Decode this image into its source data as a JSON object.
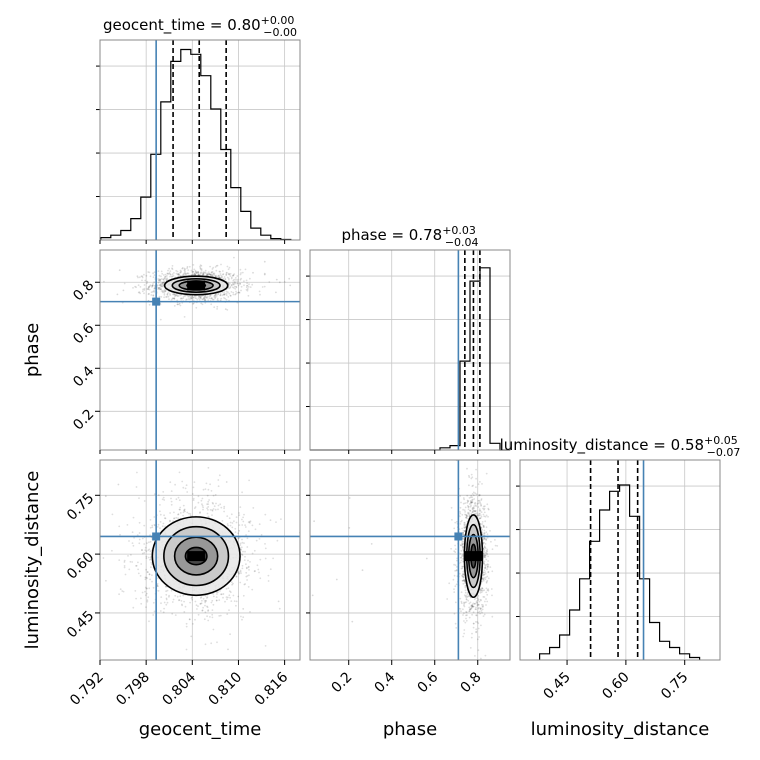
{
  "chart_data": {
    "type": "corner",
    "parameters": [
      "geocent_time",
      "phase",
      "luminosity_distance"
    ],
    "truth": {
      "geocent_time": 0.7993,
      "phase": 0.71,
      "luminosity_distance": 0.645
    },
    "colors": {
      "truth": "#4682b4",
      "hist": "#000000",
      "grid": "#c8c8c8",
      "points": "#000000"
    },
    "grid": true,
    "diagonal": [
      {
        "param": "geocent_time",
        "title": {
          "prefix": "geocent_time = 0.80",
          "plus": "+0.00",
          "minus": "−0.00"
        },
        "range": [
          0.792,
          0.818
        ],
        "edges": [
          0.7921,
          0.7934,
          0.7947,
          0.796,
          0.7973,
          0.7986,
          0.7999,
          0.8012,
          0.8025,
          0.8038,
          0.8051,
          0.8064,
          0.8077,
          0.809,
          0.8103,
          0.8116,
          0.8129,
          0.8142,
          0.8155,
          0.8168
        ],
        "counts": [
          0.5,
          1.0,
          2.0,
          4.5,
          9.0,
          18.0,
          29.0,
          37.5,
          40.0,
          39.0,
          34.5,
          27.5,
          19.0,
          11.0,
          6.0,
          2.5,
          1.0,
          0.3,
          0.1
        ],
        "ymax": 42,
        "quantiles": [
          0.8015,
          0.8049,
          0.8084
        ],
        "xticks": [
          0.792,
          0.798,
          0.804,
          0.81,
          0.816
        ],
        "xtick_labels": [
          "0.792",
          "0.798",
          "0.804",
          "0.810",
          "0.816"
        ]
      },
      {
        "param": "phase",
        "title": {
          "prefix": "phase = 0.78",
          "plus": "+0.03",
          "minus": "−0.04"
        },
        "range": [
          0.02,
          0.95
        ],
        "edges": [
          0.02,
          0.0665,
          0.113,
          0.1595,
          0.206,
          0.2525,
          0.299,
          0.3455,
          0.392,
          0.4385,
          0.485,
          0.5315,
          0.578,
          0.6245,
          0.671,
          0.7175,
          0.764,
          0.8105,
          0.857,
          0.9035,
          0.95
        ],
        "counts": [
          0,
          0,
          0,
          0,
          0,
          0,
          0,
          0,
          0,
          0,
          0,
          0,
          0,
          1,
          2,
          40,
          76,
          82,
          3,
          0
        ],
        "ymax": 90,
        "quantiles": [
          0.74,
          0.78,
          0.81
        ],
        "xticks": [
          0.2,
          0.4,
          0.6,
          0.8
        ],
        "xtick_labels": [
          "0.2",
          "0.4",
          "0.6",
          "0.8"
        ]
      },
      {
        "param": "luminosity_distance",
        "title": {
          "prefix": "luminosity_distance = 0.58",
          "plus": "+0.05",
          "minus": "−0.07"
        },
        "range": [
          0.33,
          0.84
        ],
        "edces_note": "",
        "edges": [
          0.38,
          0.4055,
          0.431,
          0.4565,
          0.482,
          0.5075,
          0.533,
          0.5585,
          0.584,
          0.6095,
          0.635,
          0.6605,
          0.686,
          0.7115,
          0.737,
          0.7625,
          0.788
        ],
        "counts": [
          1,
          2,
          4,
          8,
          13,
          19,
          24,
          27,
          28,
          23,
          13,
          6,
          3,
          2,
          1,
          0.4
        ],
        "ymax": 32,
        "quantiles": [
          0.51,
          0.58,
          0.63
        ],
        "xticks": [
          0.45,
          0.6,
          0.75
        ],
        "xtick_labels": [
          "0.45",
          "0.60",
          "0.75"
        ]
      }
    ],
    "pairs": [
      {
        "x": "geocent_time",
        "y": "phase",
        "xrange": [
          0.792,
          0.818
        ],
        "yrange": [
          0.02,
          0.95
        ],
        "center": [
          0.8045,
          0.785
        ],
        "spread": [
          0.0022,
          0.028
        ],
        "contours": [
          [
            0.0012,
            0.01
          ],
          [
            0.0022,
            0.021
          ],
          [
            0.0031,
            0.031
          ],
          [
            0.0041,
            0.043
          ]
        ],
        "yticks": [
          0.2,
          0.4,
          0.6,
          0.8
        ],
        "ytick_labels": [
          "0.2",
          "0.4",
          "0.6",
          "0.8"
        ]
      },
      {
        "x": "geocent_time",
        "y": "luminosity_distance",
        "xrange": [
          0.792,
          0.818
        ],
        "yrange": [
          0.33,
          0.84
        ],
        "center": [
          0.8045,
          0.595
        ],
        "spread": [
          0.0028,
          0.055
        ],
        "contours": [
          [
            0.0014,
            0.022
          ],
          [
            0.0028,
            0.048
          ],
          [
            0.0042,
            0.075
          ],
          [
            0.0057,
            0.1
          ]
        ],
        "yticks": [
          0.45,
          0.6,
          0.75
        ],
        "ytick_labels": [
          "0.45",
          "0.60",
          "0.75"
        ]
      },
      {
        "x": "phase",
        "y": "luminosity_distance",
        "xrange": [
          0.02,
          0.95
        ],
        "yrange": [
          0.33,
          0.84
        ],
        "center": [
          0.78,
          0.595
        ],
        "spread": [
          0.025,
          0.055
        ],
        "contours": [
          [
            0.012,
            0.03
          ],
          [
            0.022,
            0.055
          ],
          [
            0.031,
            0.08
          ],
          [
            0.042,
            0.105
          ]
        ],
        "yticks": [],
        "ytick_labels": []
      }
    ],
    "axis_labels": {
      "x": [
        "geocent_time",
        "phase",
        "luminosity_distance"
      ],
      "y": [
        "phase",
        "luminosity_distance"
      ]
    }
  }
}
